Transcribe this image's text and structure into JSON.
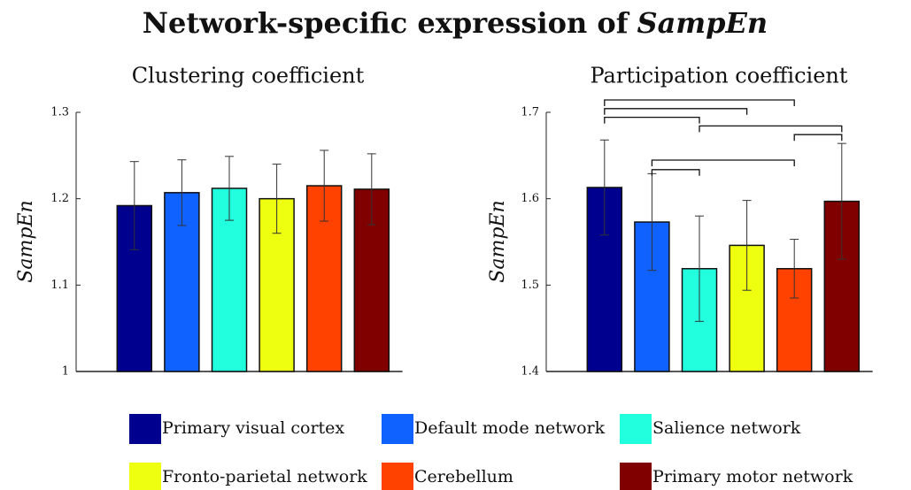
{
  "title": [
    "Network-specific expression of",
    "SampEn"
  ],
  "chart_data": [
    {
      "type": "bar",
      "title": "Clustering coefficient",
      "ylabel": "SampEn",
      "categories": [
        "Primary visual cortex",
        "Default mode network",
        "Salience network",
        "Fronto-parietal network",
        "Cerebellum",
        "Primary motor network"
      ],
      "colors": [
        "#00008f",
        "#0f62ff",
        "#22ffdf",
        "#eeff10",
        "#ff4200",
        "#800000"
      ],
      "values": [
        1.192,
        1.207,
        1.212,
        1.2,
        1.215,
        1.211
      ],
      "errors": [
        0.051,
        0.038,
        0.037,
        0.04,
        0.041,
        0.041
      ],
      "ylim": [
        1,
        1.3
      ],
      "yticks": [
        1,
        1.1,
        1.2,
        1.3
      ]
    },
    {
      "type": "bar",
      "title": "Participation coefficient",
      "ylabel": "SampEn",
      "categories": [
        "Primary visual cortex",
        "Default mode network",
        "Salience network",
        "Fronto-parietal network",
        "Cerebellum",
        "Primary motor network"
      ],
      "colors": [
        "#00008f",
        "#0f62ff",
        "#22ffdf",
        "#eeff10",
        "#ff4200",
        "#800000"
      ],
      "values": [
        1.613,
        1.573,
        1.519,
        1.546,
        1.519,
        1.597
      ],
      "errors": [
        0.055,
        0.056,
        0.061,
        0.052,
        0.034,
        0.067
      ],
      "ylim": [
        1.4,
        1.7
      ],
      "yticks": [
        1.4,
        1.5,
        1.6,
        1.7
      ],
      "significance": [
        [
          0,
          4
        ],
        [
          0,
          3
        ],
        [
          0,
          2
        ],
        [
          2,
          5
        ],
        [
          4,
          5
        ],
        [
          1,
          4
        ],
        [
          1,
          2
        ]
      ]
    }
  ]
}
